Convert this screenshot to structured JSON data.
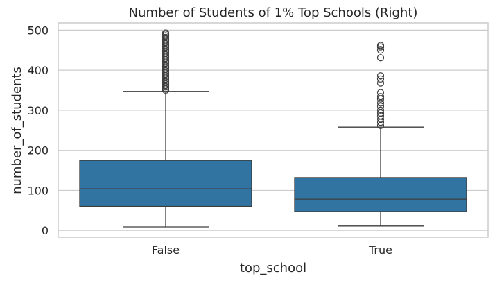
{
  "chart_data": {
    "type": "box",
    "title": "Number of Students of 1% Top Schools (Right)",
    "xlabel": "top_school",
    "ylabel": "number_of_students",
    "categories": [
      "False",
      "True"
    ],
    "ylim": [
      -17,
      518
    ],
    "yticks": [
      0,
      100,
      200,
      300,
      400,
      500
    ],
    "grid": true,
    "colors": {
      "box": "#3274a1",
      "line": "#3d3d3d",
      "grid": "#cccccc",
      "frame": "#cccccc"
    },
    "boxes": [
      {
        "category": "False",
        "whisker_low": 9,
        "q1": 60,
        "median": 104,
        "q3": 175,
        "whisker_high": 347,
        "outliers": [
          350,
          354,
          358,
          362,
          366,
          370,
          374,
          378,
          382,
          386,
          390,
          394,
          398,
          402,
          406,
          410,
          414,
          418,
          422,
          426,
          430,
          434,
          438,
          442,
          446,
          450,
          454,
          458,
          462,
          466,
          470,
          474,
          478,
          482,
          486,
          490,
          493
        ]
      },
      {
        "category": "True",
        "whisker_low": 11,
        "q1": 47,
        "median": 78,
        "q3": 132,
        "whisker_high": 258,
        "outliers": [
          262,
          270,
          278,
          286,
          293,
          300,
          310,
          318,
          328,
          334,
          344,
          368,
          378,
          386,
          431,
          450,
          458,
          462
        ]
      }
    ]
  }
}
